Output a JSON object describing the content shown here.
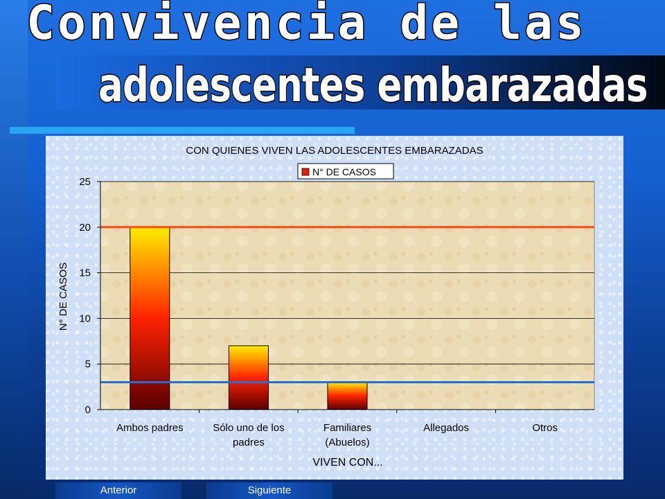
{
  "slide": {
    "title_line1": "Convivencia de las",
    "title_line2": "adolescentes embarazadas"
  },
  "navigation": {
    "prev_label": "Anterior",
    "next_label": "Siguiente"
  },
  "colors": {
    "bar_top": "#ffee00",
    "bar_mid": "#ff2200",
    "bar_bottom": "#5a0000",
    "red_line": "#ff4a10",
    "blue_line": "#1e6fd8",
    "plot_bg": "#ecdcb6"
  },
  "chart_data": {
    "type": "bar",
    "title": "CON QUIENES VIVEN LAS ADOLESCENTES EMBARAZADAS",
    "xlabel": "VIVEN CON...",
    "ylabel": "N° DE CASOS",
    "legend": "top-center",
    "grid": true,
    "ylim": [
      0,
      25
    ],
    "yticks": [
      0,
      5,
      10,
      15,
      20,
      25
    ],
    "categories": [
      [
        "Ambos padres"
      ],
      [
        "Sólo uno de los",
        "padres"
      ],
      [
        "Familiares",
        "(Abuelos)"
      ],
      [
        "Allegados"
      ],
      [
        "Otros"
      ]
    ],
    "series": [
      {
        "name": "N° DE CASOS",
        "values": [
          20,
          7,
          3,
          0,
          0
        ]
      }
    ],
    "reference_lines": [
      {
        "value": 20,
        "color": "#ff4a10"
      },
      {
        "value": 3,
        "color": "#1e6fd8"
      }
    ]
  }
}
